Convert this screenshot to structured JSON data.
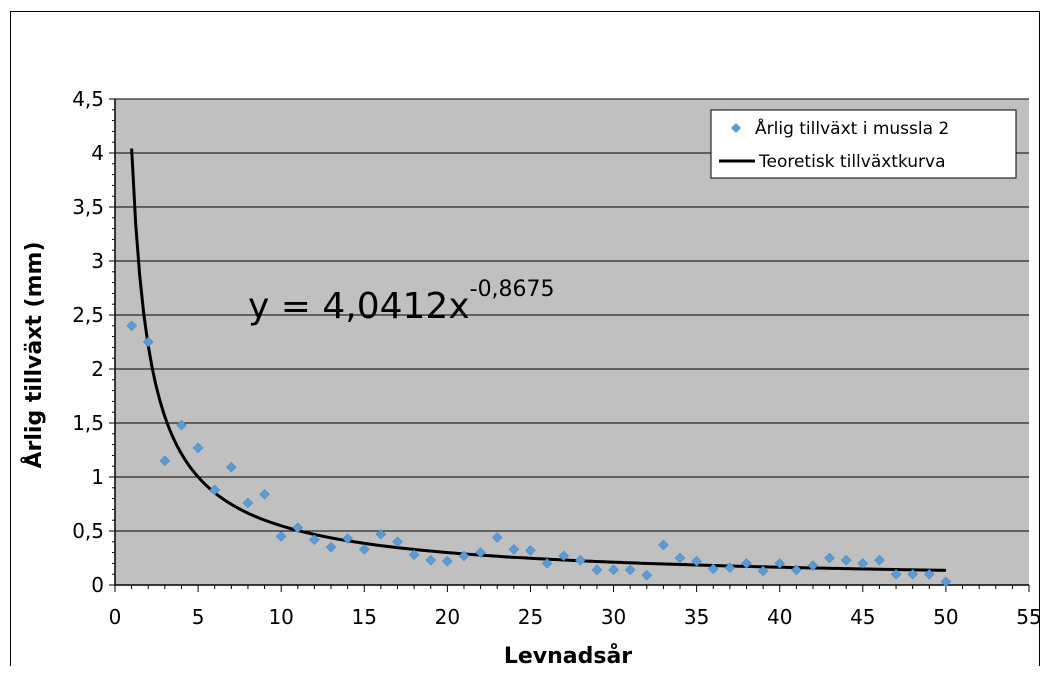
{
  "chart_data": {
    "type": "scatter",
    "title": "",
    "xlabel": "Levnadsår",
    "ylabel": "Årlig tillväxt (mm)",
    "xlim": [
      0,
      55
    ],
    "ylim": [
      0,
      4.5
    ],
    "x_ticks": [
      0,
      5,
      10,
      15,
      20,
      25,
      30,
      35,
      40,
      45,
      50,
      55
    ],
    "x_tick_labels": [
      "0",
      "5",
      "10",
      "15",
      "20",
      "25",
      "30",
      "35",
      "40",
      "45",
      "50",
      "55"
    ],
    "y_ticks": [
      0,
      0.5,
      1,
      1.5,
      2,
      2.5,
      3,
      3.5,
      4,
      4.5
    ],
    "y_tick_labels": [
      "0",
      "0,5",
      "1",
      "1,5",
      "2",
      "2,5",
      "3",
      "3,5",
      "4",
      "4,5"
    ],
    "grid": true,
    "legend_position": "top-right",
    "plot_background": "#c0c0c0",
    "series": [
      {
        "name": "Årlig tillväxt i mussla 2",
        "kind": "scatter",
        "color": "#5b9bd5",
        "marker": "diamond",
        "x": [
          1,
          2,
          3,
          4,
          5,
          6,
          7,
          8,
          9,
          10,
          11,
          12,
          13,
          14,
          15,
          16,
          17,
          18,
          19,
          20,
          21,
          22,
          23,
          24,
          25,
          26,
          27,
          28,
          29,
          30,
          31,
          32,
          33,
          34,
          35,
          36,
          37,
          38,
          39,
          40,
          41,
          42,
          43,
          44,
          45,
          46,
          47,
          48,
          49,
          50
        ],
        "y": [
          2.4,
          2.25,
          1.15,
          1.48,
          1.27,
          0.88,
          1.09,
          0.76,
          0.84,
          0.45,
          0.53,
          0.42,
          0.35,
          0.43,
          0.33,
          0.47,
          0.4,
          0.28,
          0.23,
          0.22,
          0.27,
          0.3,
          0.44,
          0.33,
          0.32,
          0.2,
          0.27,
          0.23,
          0.14,
          0.14,
          0.14,
          0.09,
          0.37,
          0.25,
          0.22,
          0.15,
          0.16,
          0.2,
          0.13,
          0.2,
          0.14,
          0.18,
          0.25,
          0.23,
          0.2,
          0.23,
          0.1,
          0.1,
          0.1,
          0.03
        ]
      },
      {
        "name": "Teoretisk tillväxtkurva",
        "kind": "line",
        "color": "#000000",
        "formula": {
          "a": 4.0412,
          "b": -0.8675
        },
        "x_range": [
          1,
          50
        ]
      }
    ],
    "annotations": [
      {
        "text_main": "y = 4,0412x",
        "text_sup": "-0,8675"
      }
    ]
  }
}
